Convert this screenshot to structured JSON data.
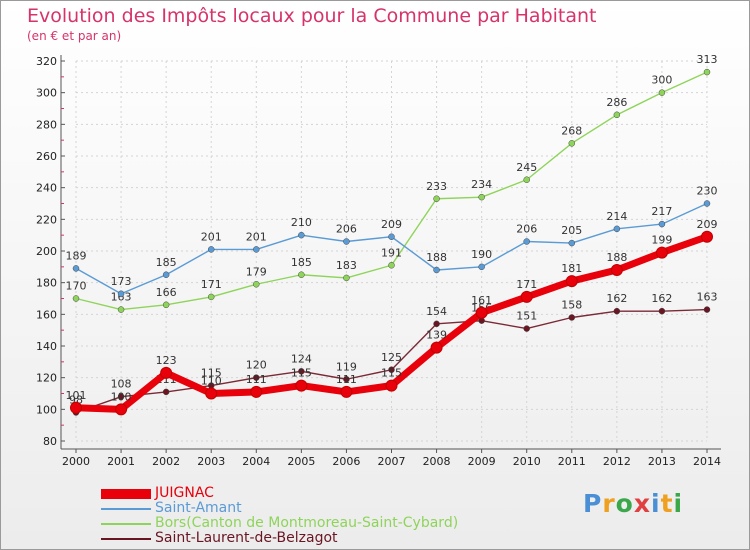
{
  "title": "Evolution des Impôts locaux pour la Commune par Habitant",
  "subtitle": "(en € et par an)",
  "brand": {
    "letters": [
      "P",
      "r",
      "o",
      "x",
      "i",
      "t",
      "i"
    ],
    "colors": [
      "#4a8fd6",
      "#f0a020",
      "#3aa84a",
      "#e04040",
      "#4a8fd6",
      "#f0a020",
      "#3aa84a"
    ]
  },
  "chart_data": {
    "type": "line",
    "title": "Evolution des Impôts locaux pour la Commune par Habitant",
    "ylabel": "(en € et par an)",
    "xlabel": "",
    "ylim": [
      80,
      320
    ],
    "yticks": [
      80,
      100,
      120,
      140,
      160,
      180,
      200,
      220,
      240,
      260,
      280,
      300,
      320
    ],
    "categories": [
      "2000",
      "2001",
      "2002",
      "2003",
      "2004",
      "2005",
      "2006",
      "2007",
      "2008",
      "2009",
      "2010",
      "2011",
      "2012",
      "2013",
      "2014"
    ],
    "grid": true,
    "series": [
      {
        "name": "Bors(Canton de Montmoreau-Saint-Cybard)",
        "color": "#8fd45a",
        "point_color": "#8fd45a",
        "values": [
          170,
          163,
          166,
          171,
          179,
          185,
          183,
          191,
          233,
          234,
          245,
          268,
          286,
          300,
          313
        ]
      },
      {
        "name": "Saint-Amant",
        "color": "#5b9bd5",
        "point_color": "#5b9bd5",
        "values": [
          189,
          173,
          185,
          201,
          201,
          210,
          206,
          209,
          188,
          190,
          206,
          205,
          214,
          217,
          230
        ]
      },
      {
        "name": "Saint-Laurent-de-Belzagot",
        "color": "#7a2a36",
        "point_color": "#6a1622",
        "values": [
          98,
          108,
          111,
          115,
          120,
          124,
          119,
          125,
          154,
          156,
          151,
          158,
          162,
          162,
          163
        ]
      },
      {
        "name": "JUIGNAC",
        "color": "#e8000b",
        "point_color": "#e8000b",
        "values": [
          101,
          100,
          123,
          110,
          111,
          115,
          111,
          115,
          139,
          161,
          171,
          181,
          188,
          199,
          209
        ]
      }
    ]
  },
  "legend": [
    {
      "name": "JUIGNAC",
      "color": "#e8000b"
    },
    {
      "name": "Saint-Amant",
      "color": "#5b9bd5"
    },
    {
      "name": "Bors(Canton de Montmoreau-Saint-Cybard)",
      "color": "#8fd45a"
    },
    {
      "name": "Saint-Laurent-de-Belzagot",
      "color": "#6a1622"
    }
  ]
}
